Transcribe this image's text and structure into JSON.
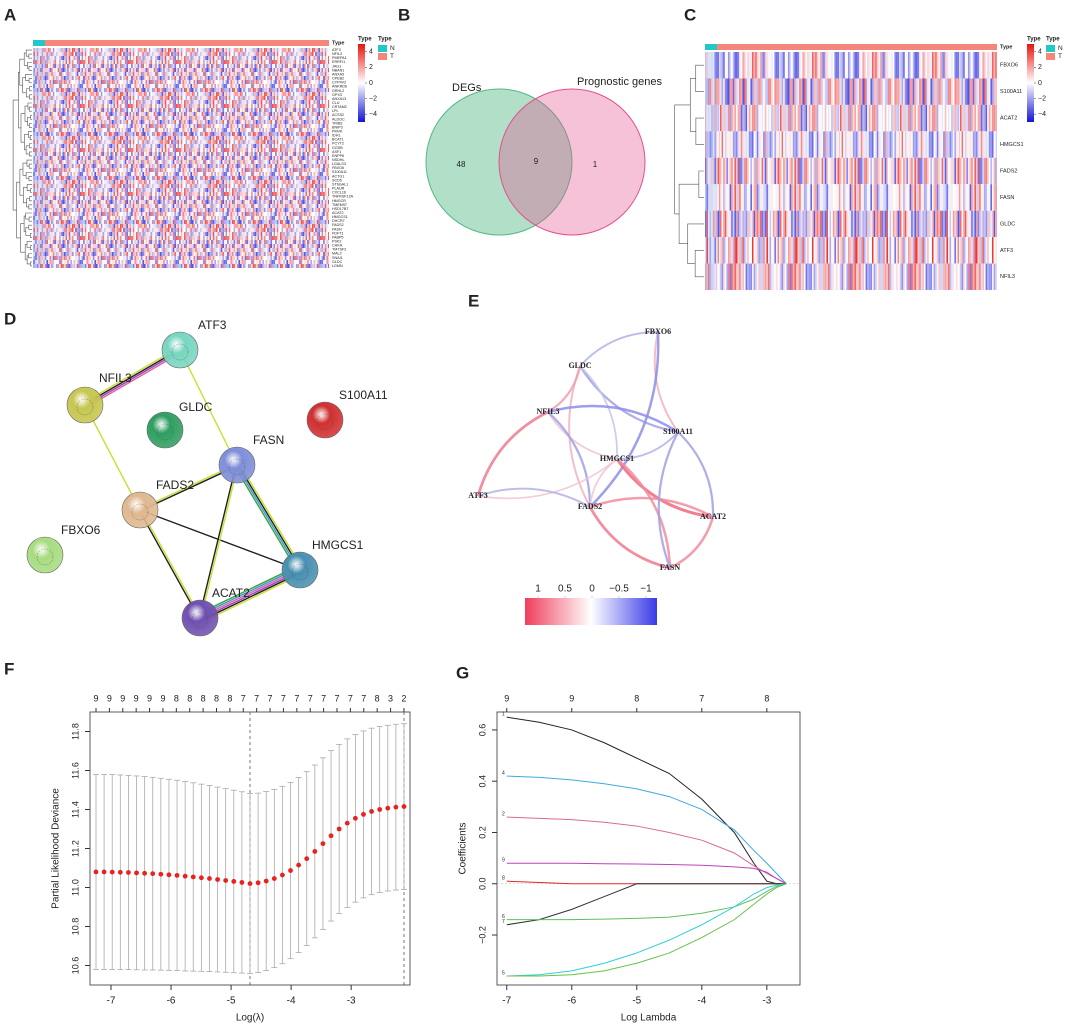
{
  "panel_labels": [
    "A",
    "B",
    "C",
    "D",
    "E",
    "F",
    "G"
  ],
  "heatmap_a": {
    "annotation_label": "Type",
    "colorbar_title": "Type",
    "legend_title": "Type",
    "groups": [
      {
        "name": "N",
        "color": "#22c7c7"
      },
      {
        "name": "T",
        "color": "#f4877a"
      }
    ],
    "colorbar_ticks": [
      4,
      2,
      0,
      {
        "value": -2,
        "label": "−2"
      },
      {
        "value": -4,
        "label": "−4"
      }
    ],
    "genes": [
      "ATF3",
      "NFIL3",
      "PMEPA1",
      "ERRFI1",
      "JAG1",
      "NBAN1",
      "ANXA5",
      "CPEB2",
      "CYP4V2",
      "ANKRD6",
      "GRHL2",
      "GPX3",
      "ANXA13",
      "CLU",
      "CRTAM2",
      "LPL",
      "ACSS2",
      "ALDOC",
      "TRIB3",
      "BNIP3",
      "PMVK",
      "IDH1",
      "BCAT1",
      "PCYT2",
      "GGSB",
      "ASF1",
      "ENPP6",
      "NSDHL",
      "LGALS3",
      "FBXO6",
      "S100A11",
      "ACTG1",
      "SCD5",
      "ST6GAL1",
      "PLAUR",
      "CXCL16",
      "TNFRSF12A",
      "HMGCR",
      "TMEM97",
      "HSD17B7",
      "ACAT2",
      "HMGCS1",
      "DHCR7",
      "FADS2",
      "FASN",
      "FDFT1",
      "FABP5",
      "PSK2",
      "CHKA",
      "TMTSF2",
      "MAL2",
      "SNAI1",
      "GLDC",
      "LGMN"
    ]
  },
  "venn": {
    "sets": [
      "DEGs",
      "Prognostic genes"
    ],
    "counts": [
      48,
      9,
      1
    ],
    "colors": [
      "#52b985",
      "#e2508f"
    ]
  },
  "heatmap_c": {
    "annotation_label": "Type",
    "colorbar_title": "Type",
    "legend_title": "Type",
    "groups": [
      {
        "name": "N",
        "color": "#22c7c7"
      },
      {
        "name": "T",
        "color": "#f4877a"
      }
    ],
    "colorbar_ticks": [
      4,
      2,
      0,
      {
        "value": -2,
        "label": "−2"
      },
      {
        "value": -4,
        "label": "−4"
      }
    ],
    "genes": [
      "FBXO6",
      "S100A11",
      "ACAT2",
      "HMGCS1",
      "FADS2",
      "FASN",
      "GLDC",
      "ATF3",
      "NFIL3"
    ]
  },
  "network_d": {
    "nodes": [
      {
        "label": "ATF3",
        "color": "#78d6c0"
      },
      {
        "label": "NFIL3",
        "color": "#c6c650"
      },
      {
        "label": "GLDC",
        "color": "#2f9e60"
      },
      {
        "label": "S100A11",
        "color": "#d03030"
      },
      {
        "label": "FASN",
        "color": "#7f8fd8"
      },
      {
        "label": "FADS2",
        "color": "#e0b890"
      },
      {
        "label": "FBXO6",
        "color": "#a8dc80"
      },
      {
        "label": "HMGCS1",
        "color": "#4890b0"
      },
      {
        "label": "ACAT2",
        "color": "#7050b0"
      }
    ],
    "edges": [
      {
        "from": "NFIL3",
        "to": "ATF3",
        "colors": [
          "#c8e030",
          "#202020",
          "#a040c0",
          "#e060a0"
        ]
      },
      {
        "from": "ATF3",
        "to": "FASN",
        "colors": [
          "#c8e030"
        ]
      },
      {
        "from": "NFIL3",
        "to": "FADS2",
        "colors": [
          "#c8e030"
        ]
      },
      {
        "from": "FADS2",
        "to": "FASN",
        "colors": [
          "#c8e030",
          "#202020"
        ]
      },
      {
        "from": "FADS2",
        "to": "HMGCS1",
        "colors": [
          "#202020"
        ]
      },
      {
        "from": "FADS2",
        "to": "ACAT2",
        "colors": [
          "#c8e030",
          "#202020"
        ]
      },
      {
        "from": "FASN",
        "to": "ACAT2",
        "colors": [
          "#c8e030",
          "#202020"
        ]
      },
      {
        "from": "FASN",
        "to": "HMGCS1",
        "colors": [
          "#c8e030",
          "#202020",
          "#30a0d0",
          "#40a040"
        ]
      },
      {
        "from": "HMGCS1",
        "to": "ACAT2",
        "colors": [
          "#c8e030",
          "#202020",
          "#a040c0",
          "#e060a0",
          "#30a0d0",
          "#40a040"
        ]
      }
    ]
  },
  "network_e": {
    "nodes": [
      "FBXO6",
      "GLDC",
      "NFIL3",
      "S100A11",
      "HMGCS1",
      "ATF3",
      "FADS2",
      "ACAT2",
      "FASN"
    ],
    "edges": [
      {
        "from": "GLDC",
        "to": "FBXO6",
        "r": -0.4
      },
      {
        "from": "GLDC",
        "to": "S100A11",
        "r": -0.5
      },
      {
        "from": "GLDC",
        "to": "HMGCS1",
        "r": -0.3
      },
      {
        "from": "GLDC",
        "to": "FADS2",
        "r": 0.4
      },
      {
        "from": "GLDC",
        "to": "NFIL3",
        "r": 0.5
      },
      {
        "from": "NFIL3",
        "to": "ATF3",
        "r": 0.7
      },
      {
        "from": "NFIL3",
        "to": "S100A11",
        "r": -0.6
      },
      {
        "from": "NFIL3",
        "to": "HMGCS1",
        "r": 0.3
      },
      {
        "from": "NFIL3",
        "to": "FADS2",
        "r": -0.5
      },
      {
        "from": "FBXO6",
        "to": "S100A11",
        "r": 0.4
      },
      {
        "from": "FBXO6",
        "to": "FADS2",
        "r": -0.6
      },
      {
        "from": "ATF3",
        "to": "HMGCS1",
        "r": 0.3
      },
      {
        "from": "ATF3",
        "to": "FADS2",
        "r": -0.4
      },
      {
        "from": "HMGCS1",
        "to": "ACAT2",
        "r": 0.8
      },
      {
        "from": "HMGCS1",
        "to": "FASN",
        "r": 0.6
      },
      {
        "from": "HMGCS1",
        "to": "S100A11",
        "r": -0.4
      },
      {
        "from": "FADS2",
        "to": "ACAT2",
        "r": 0.6
      },
      {
        "from": "FADS2",
        "to": "FASN",
        "r": 0.7
      },
      {
        "from": "S100A11",
        "to": "ACAT2",
        "r": -0.5
      },
      {
        "from": "S100A11",
        "to": "FASN",
        "r": -0.5
      },
      {
        "from": "ACAT2",
        "to": "FASN",
        "r": 0.6
      },
      {
        "from": "HMGCS1",
        "to": "FADS2",
        "r": 0.3
      }
    ],
    "colorbar_ticks": [
      1,
      0.5,
      0,
      {
        "value": -0.5,
        "label": "−0.5"
      },
      {
        "value": -1,
        "label": "−1"
      }
    ]
  },
  "chart_data": [
    {
      "type": "errorbar",
      "xlabel": "Log(λ)",
      "ylabel": "Partial Likelihood Deviance",
      "color": "#e8231e",
      "x": [
        -7.25,
        -7.115,
        -6.98,
        -6.845,
        -6.71,
        -6.575,
        -6.44,
        -6.305,
        -6.17,
        -6.035,
        -5.9,
        -5.765,
        -5.63,
        -5.495,
        -5.36,
        -5.225,
        -5.09,
        -4.955,
        -4.82,
        -4.685,
        -4.55,
        -4.415,
        -4.28,
        -4.145,
        -4.01,
        -3.875,
        -3.74,
        -3.605,
        -3.47,
        -3.335,
        -3.2,
        -3.065,
        -2.93,
        -2.795,
        -2.66,
        -2.525,
        -2.39,
        -2.255,
        -2.12
      ],
      "values": [
        11.08,
        11.08,
        11.079,
        11.078,
        11.077,
        11.075,
        11.073,
        11.071,
        11.068,
        11.065,
        11.062,
        11.058,
        11.054,
        11.05,
        11.046,
        11.041,
        11.036,
        11.031,
        11.026,
        11.02,
        11.024,
        11.033,
        11.046,
        11.064,
        11.087,
        11.115,
        11.148,
        11.185,
        11.225,
        11.265,
        11.3,
        11.33,
        11.355,
        11.375,
        11.39,
        11.4,
        11.407,
        11.412,
        11.415
      ],
      "errors": [
        0.5,
        0.5,
        0.5,
        0.499,
        0.498,
        0.497,
        0.496,
        0.494,
        0.492,
        0.49,
        0.488,
        0.486,
        0.483,
        0.48,
        0.477,
        0.474,
        0.471,
        0.468,
        0.465,
        0.462,
        0.46,
        0.459,
        0.457,
        0.455,
        0.452,
        0.449,
        0.446,
        0.443,
        0.44,
        0.437,
        0.434,
        0.432,
        0.43,
        0.428,
        0.427,
        0.426,
        0.425,
        0.425,
        0.425
      ],
      "vlines": [
        -4.685,
        -2.12
      ],
      "xlim": [
        -7.35,
        -2.02
      ],
      "xticks": [
        -7,
        -6,
        -5,
        -4,
        -3
      ],
      "ylim": [
        10.5,
        11.9
      ],
      "yticks": [
        10.6,
        10.8,
        {
          "value": 11,
          "label": "11.0"
        },
        11.2,
        11.4,
        11.6,
        11.8
      ],
      "top_ticks": [
        {
          "value": -7.25,
          "label": "9"
        },
        {
          "value": -7.027,
          "label": "9"
        },
        {
          "value": -6.804,
          "label": "9"
        },
        {
          "value": -6.581,
          "label": "9"
        },
        {
          "value": -6.358,
          "label": "9"
        },
        {
          "value": -6.135,
          "label": "9"
        },
        {
          "value": -5.912,
          "label": "8"
        },
        {
          "value": -5.689,
          "label": "8"
        },
        {
          "value": -5.466,
          "label": "8"
        },
        {
          "value": -5.243,
          "label": "8"
        },
        {
          "value": -5.02,
          "label": "8"
        },
        {
          "value": -4.797,
          "label": "7"
        },
        {
          "value": -4.574,
          "label": "7"
        },
        {
          "value": -4.351,
          "label": "7"
        },
        {
          "value": -4.128,
          "label": "7"
        },
        {
          "value": -3.905,
          "label": "7"
        },
        {
          "value": -3.682,
          "label": "7"
        },
        {
          "value": -3.459,
          "label": "7"
        },
        {
          "value": -3.236,
          "label": "7"
        },
        {
          "value": -3.013,
          "label": "7"
        },
        {
          "value": -2.79,
          "label": "7"
        },
        {
          "value": -2.567,
          "label": "8"
        },
        {
          "value": -2.344,
          "label": "3"
        },
        {
          "value": -2.121,
          "label": "2"
        }
      ]
    },
    {
      "type": "line",
      "xlabel": "Log Lambda",
      "ylabel": "Coefficients",
      "x": [
        -7,
        -6.5,
        -6,
        -5.5,
        -5,
        -4.5,
        -4,
        -3.5,
        -3.2,
        -3,
        -2.85,
        -2.7
      ],
      "series": [
        {
          "name": "1",
          "color": "#222222",
          "values": [
            0.65,
            0.63,
            0.6,
            0.55,
            0.49,
            0.43,
            0.33,
            0.2,
            0.08,
            0.01,
            0,
            0
          ]
        },
        {
          "name": "4",
          "color": "#3fa9e0",
          "values": [
            0.42,
            0.415,
            0.405,
            0.39,
            0.37,
            0.34,
            0.29,
            0.21,
            0.13,
            0.08,
            0.04,
            0
          ]
        },
        {
          "name": "2",
          "color": "#d9689c",
          "values": [
            0.26,
            0.255,
            0.25,
            0.24,
            0.225,
            0.2,
            0.17,
            0.12,
            0.07,
            0.04,
            0.02,
            0
          ]
        },
        {
          "name": "9",
          "color": "#c040c0",
          "values": [
            0.08,
            0.08,
            0.08,
            0.078,
            0.077,
            0.075,
            0.072,
            0.066,
            0.06,
            0.045,
            0.02,
            0
          ]
        },
        {
          "name": "8",
          "color": "#e02828",
          "values": [
            0.01,
            0.005,
            0,
            0,
            0,
            0,
            0,
            0,
            0,
            0,
            0,
            0
          ]
        },
        {
          "name": "7",
          "color": "#333333",
          "values": [
            -0.16,
            -0.14,
            -0.1,
            -0.05,
            0,
            0,
            0,
            0,
            0,
            0,
            0,
            0
          ]
        },
        {
          "name": "6",
          "color": "#5cc060",
          "values": [
            -0.14,
            -0.14,
            -0.14,
            -0.138,
            -0.135,
            -0.13,
            -0.115,
            -0.09,
            -0.06,
            -0.03,
            -0.01,
            0
          ]
        },
        {
          "name": "5",
          "color": "#30d0d8",
          "values": [
            -0.36,
            -0.355,
            -0.34,
            -0.31,
            -0.27,
            -0.22,
            -0.16,
            -0.09,
            -0.04,
            -0.015,
            -0.005,
            0
          ]
        },
        {
          "name": null,
          "color": "#6ac048",
          "values": [
            -0.36,
            -0.36,
            -0.355,
            -0.34,
            -0.31,
            -0.27,
            -0.21,
            -0.14,
            -0.08,
            -0.04,
            -0.015,
            0
          ]
        }
      ],
      "xlim": [
        -7.15,
        -2.49
      ],
      "xticks": [
        -7,
        -6,
        -5,
        -4,
        -3
      ],
      "ylim": [
        -0.395,
        0.67
      ],
      "yticks": [
        {
          "value": -0.2,
          "label": "−0.2"
        },
        {
          "value": 0,
          "label": "0.0"
        },
        0.2,
        0.4,
        0.6
      ],
      "top_ticks": [
        {
          "value": -7,
          "label": "9"
        },
        {
          "value": -6,
          "label": "9"
        },
        {
          "value": -5,
          "label": "8"
        },
        {
          "value": -4,
          "label": "7"
        },
        {
          "value": -3,
          "label": "8"
        }
      ]
    }
  ]
}
